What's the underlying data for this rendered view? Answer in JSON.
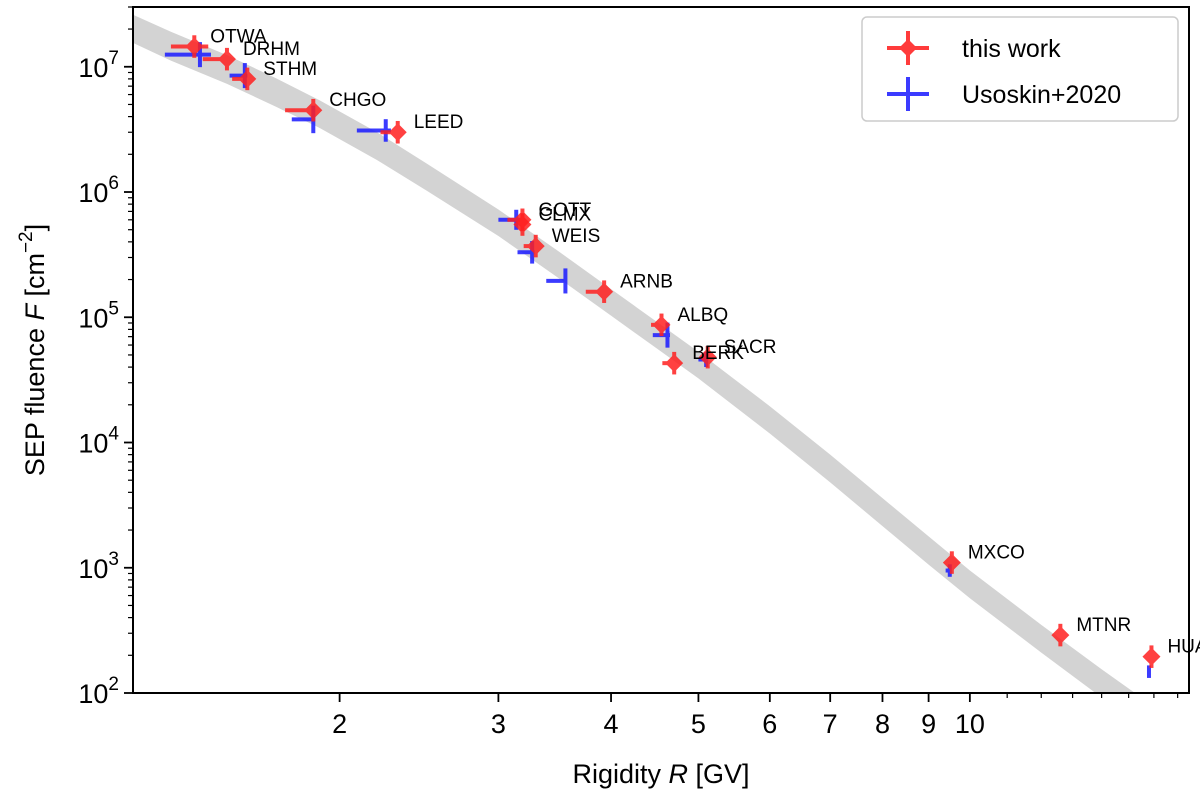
{
  "chart_data": {
    "type": "scatter",
    "xscale": "log",
    "yscale": "log",
    "xlim": [
      1.18,
      17.5
    ],
    "ylim": [
      100,
      30000000
    ],
    "xlabel_prefix": "Rigidity ",
    "xlabel_var": "R",
    "xlabel_unit": " [GV]",
    "ylabel_prefix": "SEP fluence ",
    "ylabel_var": "F",
    "ylabel_unit": " [cm",
    "ylabel_exp": "−2",
    "ylabel_close": "]",
    "x_ticks": [
      {
        "value": 2,
        "label": "2"
      },
      {
        "value": 3,
        "label": "3"
      },
      {
        "value": 4,
        "label": "4"
      },
      {
        "value": 5,
        "label": "5"
      },
      {
        "value": 6,
        "label": "6"
      },
      {
        "value": 7,
        "label": "7"
      },
      {
        "value": 8,
        "label": "8"
      },
      {
        "value": 9,
        "label": "9"
      },
      {
        "value": 10,
        "label": "10"
      }
    ],
    "y_ticks": [
      {
        "value": 100,
        "base": "10",
        "exp": "2"
      },
      {
        "value": 1000,
        "base": "10",
        "exp": "3"
      },
      {
        "value": 10000,
        "base": "10",
        "exp": "4"
      },
      {
        "value": 100000,
        "base": "10",
        "exp": "5"
      },
      {
        "value": 1000000,
        "base": "10",
        "exp": "6"
      },
      {
        "value": 10000000,
        "base": "10",
        "exp": "7"
      }
    ],
    "band": {
      "color": "#d3d3d3",
      "x": [
        1.18,
        1.3,
        1.5,
        1.7,
        1.9,
        2.2,
        2.5,
        3.0,
        3.5,
        4.0,
        4.5,
        5.0,
        6.0,
        7.0,
        8.0,
        9.0,
        10.0,
        12.0,
        14.0,
        16.0,
        17.5
      ],
      "y_low": [
        15500000,
        11200000,
        7300000,
        4800000,
        3250000,
        1800000,
        1020000,
        445000,
        205000,
        103000,
        56000,
        32500,
        11800,
        4800,
        2150,
        1060,
        570,
        210,
        92,
        45,
        33
      ],
      "y_high": [
        26000000,
        19000000,
        12400000,
        8100000,
        5400000,
        3000000,
        1680000,
        725000,
        335000,
        168000,
        91500,
        53000,
        19500,
        8000,
        3600,
        1780,
        950,
        350,
        155,
        78,
        57
      ]
    },
    "series": [
      {
        "name": "this work",
        "color": "#ff2020",
        "points": [
          {
            "label": "OTWA",
            "x": 1.38,
            "y": 14500000,
            "xerr_low": 0.08,
            "xerr_high": 0.05,
            "yerr": 0.09
          },
          {
            "label": "DRHM",
            "x": 1.5,
            "y": 11500000,
            "xerr_low": 0.09,
            "xerr_high": 0.02,
            "yerr": 0.09
          },
          {
            "label": "STHM",
            "x": 1.58,
            "y": 8000000,
            "xerr_low": 0.06,
            "xerr_high": 0.0,
            "yerr": 0.09
          },
          {
            "label": "CHGO",
            "x": 1.87,
            "y": 4500000,
            "xerr_low": 0.13,
            "xerr_high": 0.0,
            "yerr": 0.09
          },
          {
            "label": "LEED",
            "x": 2.32,
            "y": 3000000,
            "xerr_low": 0.1,
            "xerr_high": 0.0,
            "yerr": 0.09
          },
          {
            "label": "GOTT",
            "x": 3.19,
            "y": 600000,
            "xerr_low": 0.12,
            "xerr_high": 0.0,
            "yerr": 0.09
          },
          {
            "label": "CLMX",
            "x": 3.19,
            "y": 550000,
            "xerr_low": 0.0,
            "xerr_high": 0.0,
            "yerr": 0.09
          },
          {
            "label": "WEIS",
            "x": 3.3,
            "y": 370000,
            "xerr_low": 0.1,
            "xerr_high": 0.0,
            "yerr": 0.09
          },
          {
            "label": "ARNB",
            "x": 3.93,
            "y": 160000,
            "xerr_low": 0.18,
            "xerr_high": 0.0,
            "yerr": 0.09
          },
          {
            "label": "ALBQ",
            "x": 4.55,
            "y": 87000,
            "xerr_low": 0.12,
            "xerr_high": 0.0,
            "yerr": 0.09
          },
          {
            "label": "BERK",
            "x": 4.7,
            "y": 43000,
            "xerr_low": 0.14,
            "xerr_high": 0.0,
            "yerr": 0.09
          },
          {
            "label": "SACR",
            "x": 5.12,
            "y": 48000,
            "xerr_low": 0.0,
            "xerr_high": 0.0,
            "yerr": 0.09
          },
          {
            "label": "MXCO",
            "x": 9.55,
            "y": 1100,
            "xerr_low": 0.0,
            "xerr_high": 0.0,
            "yerr": 0.09
          },
          {
            "label": "MTNR",
            "x": 12.6,
            "y": 290,
            "xerr_low": 0.0,
            "xerr_high": 0.0,
            "yerr": 0.09
          },
          {
            "label": "HUAN",
            "x": 15.9,
            "y": 195,
            "xerr_low": 0.0,
            "xerr_high": 0.0,
            "yerr": 0.09
          }
        ]
      },
      {
        "name": "Usoskin+2020",
        "color": "#2020ff",
        "points": [
          {
            "x": 1.4,
            "y": 12500000,
            "xerr_low": 0.12,
            "xerr_high": 0.04,
            "yerr": 0.1
          },
          {
            "x": 1.57,
            "y": 8500000,
            "xerr_low": 0.06,
            "xerr_high": 0.01,
            "yerr": 0.1
          },
          {
            "x": 1.87,
            "y": 3800000,
            "xerr_low": 0.1,
            "xerr_high": 0.0,
            "yerr": 0.11
          },
          {
            "x": 2.25,
            "y": 3100000,
            "xerr_low": 0.16,
            "xerr_high": 0.03,
            "yerr": 0.09
          },
          {
            "x": 3.14,
            "y": 600000,
            "xerr_low": 0.14,
            "xerr_high": 0.03,
            "yerr": 0.08
          },
          {
            "x": 3.27,
            "y": 330000,
            "xerr_low": 0.12,
            "xerr_high": 0.02,
            "yerr": 0.09
          },
          {
            "x": 3.56,
            "y": 195000,
            "xerr_low": 0.17,
            "xerr_high": 0.01,
            "yerr": 0.1
          },
          {
            "x": 4.62,
            "y": 72000,
            "xerr_low": 0.17,
            "xerr_high": 0.03,
            "yerr": 0.1
          },
          {
            "x": 5.1,
            "y": 46000,
            "xerr_low": 0.1,
            "xerr_high": 0.02,
            "yerr": 0.06
          },
          {
            "x": 9.5,
            "y": 950,
            "xerr_low": 0.1,
            "xerr_high": 0.0,
            "yerr": 0.05
          },
          {
            "x": 15.8,
            "y": 148,
            "xerr_low": 0.05,
            "xerr_high": 0.0,
            "yerr": 0.05
          }
        ]
      }
    ],
    "legend": {
      "placement": "top-right",
      "entries": [
        {
          "label": "this work",
          "color": "#ff2020"
        },
        {
          "label": "Usoskin+2020",
          "color": "#2020ff"
        }
      ]
    }
  }
}
